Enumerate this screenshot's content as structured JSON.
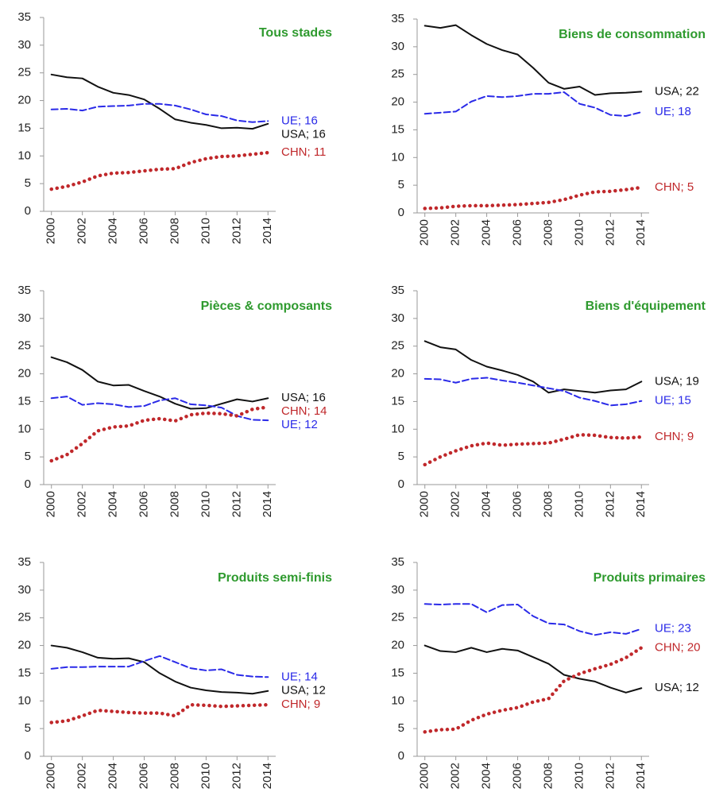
{
  "chart_data": [
    {
      "type": "line",
      "title": "Tous stades",
      "x": [
        2000,
        2001,
        2002,
        2003,
        2004,
        2005,
        2006,
        2007,
        2008,
        2009,
        2010,
        2011,
        2012,
        2013,
        2014
      ],
      "xlim": [
        1999.5,
        2014.5
      ],
      "xticks": [
        2000,
        2002,
        2004,
        2006,
        2008,
        2010,
        2012,
        2014
      ],
      "ylim": [
        0,
        35
      ],
      "yticks": [
        0,
        5,
        10,
        15,
        20,
        25,
        30,
        35
      ],
      "series": [
        {
          "name": "USA",
          "color": "#111111",
          "style": "solid",
          "values": [
            24.7,
            24.2,
            24.0,
            22.5,
            21.4,
            21.0,
            20.2,
            18.5,
            16.6,
            16.0,
            15.6,
            15.0,
            15.1,
            14.9,
            15.8
          ],
          "value_labels": [
            null,
            null,
            null,
            null,
            null,
            null,
            null,
            null,
            null,
            null,
            null,
            null,
            null,
            null,
            "USA; 16"
          ]
        },
        {
          "name": "UE",
          "color": "#2a2ae8",
          "style": "dashed",
          "values": [
            18.4,
            18.5,
            18.2,
            18.9,
            19.0,
            19.1,
            19.4,
            19.4,
            19.1,
            18.4,
            17.5,
            17.2,
            16.4,
            16.1,
            16.3
          ],
          "value_labels": [
            null,
            null,
            null,
            null,
            null,
            null,
            null,
            null,
            null,
            null,
            null,
            null,
            null,
            null,
            "UE; 16"
          ]
        },
        {
          "name": "CHN",
          "color": "#c0282b",
          "style": "dotted",
          "values": [
            4.0,
            4.5,
            5.3,
            6.4,
            6.9,
            7.0,
            7.3,
            7.6,
            7.7,
            8.8,
            9.5,
            9.9,
            10.0,
            10.3,
            10.6
          ],
          "value_labels": [
            null,
            null,
            null,
            null,
            null,
            null,
            null,
            null,
            null,
            null,
            null,
            null,
            null,
            null,
            "CHN; 11"
          ]
        }
      ]
    },
    {
      "type": "line",
      "title": "Biens de consommation",
      "x": [
        2000,
        2001,
        2002,
        2003,
        2004,
        2005,
        2006,
        2007,
        2008,
        2009,
        2010,
        2011,
        2012,
        2013,
        2014
      ],
      "xlim": [
        1999.5,
        2014.5
      ],
      "xticks": [
        2000,
        2002,
        2004,
        2006,
        2008,
        2010,
        2012,
        2014
      ],
      "ylim": [
        0,
        35
      ],
      "yticks": [
        0,
        5,
        10,
        15,
        20,
        25,
        30,
        35
      ],
      "series": [
        {
          "name": "USA",
          "color": "#111111",
          "style": "solid",
          "values": [
            33.8,
            33.4,
            33.9,
            32.1,
            30.5,
            29.4,
            28.6,
            26.2,
            23.5,
            22.4,
            22.8,
            21.3,
            21.6,
            21.7,
            21.9
          ],
          "value_labels": [
            null,
            null,
            null,
            null,
            null,
            null,
            null,
            null,
            null,
            null,
            null,
            null,
            null,
            null,
            "USA; 22"
          ]
        },
        {
          "name": "UE",
          "color": "#2a2ae8",
          "style": "dashed",
          "values": [
            17.9,
            18.1,
            18.3,
            20.1,
            21.1,
            20.9,
            21.1,
            21.5,
            21.5,
            21.8,
            19.7,
            19.0,
            17.7,
            17.5,
            18.2
          ],
          "value_labels": [
            null,
            null,
            null,
            null,
            null,
            null,
            null,
            null,
            null,
            null,
            null,
            null,
            null,
            null,
            "UE; 18"
          ]
        },
        {
          "name": "CHN",
          "color": "#c0282b",
          "style": "dotted",
          "values": [
            0.8,
            0.9,
            1.2,
            1.3,
            1.3,
            1.4,
            1.5,
            1.7,
            1.9,
            2.4,
            3.2,
            3.8,
            3.9,
            4.2,
            4.6
          ],
          "value_labels": [
            null,
            null,
            null,
            null,
            null,
            null,
            null,
            null,
            null,
            null,
            null,
            null,
            null,
            null,
            "CHN; 5"
          ]
        }
      ]
    },
    {
      "type": "line",
      "title": "Pièces & composants",
      "x": [
        2000,
        2001,
        2002,
        2003,
        2004,
        2005,
        2006,
        2007,
        2008,
        2009,
        2010,
        2011,
        2012,
        2013,
        2014
      ],
      "xlim": [
        1999.5,
        2014.5
      ],
      "xticks": [
        2000,
        2002,
        2004,
        2006,
        2008,
        2010,
        2012,
        2014
      ],
      "ylim": [
        0,
        35
      ],
      "yticks": [
        0,
        5,
        10,
        15,
        20,
        25,
        30,
        35
      ],
      "series": [
        {
          "name": "USA",
          "color": "#111111",
          "style": "solid",
          "values": [
            23.0,
            22.1,
            20.7,
            18.6,
            17.9,
            18.0,
            16.9,
            15.9,
            14.6,
            13.7,
            13.8,
            14.6,
            15.4,
            15.0,
            15.6
          ],
          "value_labels": [
            null,
            null,
            null,
            null,
            null,
            null,
            null,
            null,
            null,
            null,
            null,
            null,
            null,
            null,
            "USA; 16"
          ]
        },
        {
          "name": "UE",
          "color": "#2a2ae8",
          "style": "dashed",
          "values": [
            15.6,
            15.9,
            14.4,
            14.7,
            14.5,
            14.0,
            14.2,
            15.2,
            15.6,
            14.5,
            14.3,
            13.9,
            12.4,
            11.7,
            11.6
          ],
          "value_labels": [
            null,
            null,
            null,
            null,
            null,
            null,
            null,
            null,
            null,
            null,
            null,
            null,
            null,
            null,
            "UE; 12"
          ]
        },
        {
          "name": "CHN",
          "color": "#c0282b",
          "style": "dotted",
          "values": [
            4.3,
            5.4,
            7.4,
            9.7,
            10.4,
            10.6,
            11.6,
            11.9,
            11.5,
            12.6,
            12.9,
            12.8,
            12.4,
            13.6,
            14.0
          ],
          "value_labels": [
            null,
            null,
            null,
            null,
            null,
            null,
            null,
            null,
            null,
            null,
            null,
            null,
            null,
            null,
            "CHN; 14"
          ]
        }
      ]
    },
    {
      "type": "line",
      "title": "Biens d'équipement",
      "x": [
        2000,
        2001,
        2002,
        2003,
        2004,
        2005,
        2006,
        2007,
        2008,
        2009,
        2010,
        2011,
        2012,
        2013,
        2014
      ],
      "xlim": [
        1999.5,
        2014.5
      ],
      "xticks": [
        2000,
        2002,
        2004,
        2006,
        2008,
        2010,
        2012,
        2014
      ],
      "ylim": [
        0,
        35
      ],
      "yticks": [
        0,
        5,
        10,
        15,
        20,
        25,
        30,
        35
      ],
      "series": [
        {
          "name": "USA",
          "color": "#111111",
          "style": "solid",
          "values": [
            25.9,
            24.8,
            24.4,
            22.5,
            21.3,
            20.6,
            19.8,
            18.6,
            16.6,
            17.2,
            16.9,
            16.6,
            17.0,
            17.2,
            18.6
          ],
          "value_labels": [
            null,
            null,
            null,
            null,
            null,
            null,
            null,
            null,
            null,
            null,
            null,
            null,
            null,
            null,
            "USA; 19"
          ]
        },
        {
          "name": "UE",
          "color": "#2a2ae8",
          "style": "dashed",
          "values": [
            19.1,
            19.0,
            18.4,
            19.1,
            19.3,
            18.8,
            18.4,
            17.9,
            17.4,
            16.9,
            15.7,
            15.1,
            14.3,
            14.5,
            15.1
          ],
          "value_labels": [
            null,
            null,
            null,
            null,
            null,
            null,
            null,
            null,
            null,
            null,
            null,
            null,
            null,
            null,
            "UE; 15"
          ]
        },
        {
          "name": "CHN",
          "color": "#c0282b",
          "style": "dotted",
          "values": [
            3.6,
            5.0,
            6.1,
            7.0,
            7.5,
            7.1,
            7.3,
            7.4,
            7.5,
            8.2,
            9.0,
            8.9,
            8.5,
            8.4,
            8.6
          ],
          "value_labels": [
            null,
            null,
            null,
            null,
            null,
            null,
            null,
            null,
            null,
            null,
            null,
            null,
            null,
            null,
            "CHN; 9"
          ]
        }
      ]
    },
    {
      "type": "line",
      "title": "Produits semi-finis",
      "x": [
        2000,
        2001,
        2002,
        2003,
        2004,
        2005,
        2006,
        2007,
        2008,
        2009,
        2010,
        2011,
        2012,
        2013,
        2014
      ],
      "xlim": [
        1999.5,
        2014.5
      ],
      "xticks": [
        2000,
        2002,
        2004,
        2006,
        2008,
        2010,
        2012,
        2014
      ],
      "ylim": [
        0,
        35
      ],
      "yticks": [
        0,
        5,
        10,
        15,
        20,
        25,
        30,
        35
      ],
      "series": [
        {
          "name": "USA",
          "color": "#111111",
          "style": "solid",
          "values": [
            20.0,
            19.6,
            18.8,
            17.8,
            17.6,
            17.7,
            17.0,
            15.0,
            13.5,
            12.4,
            11.9,
            11.6,
            11.5,
            11.3,
            11.8
          ],
          "value_labels": [
            null,
            null,
            null,
            null,
            null,
            null,
            null,
            null,
            null,
            null,
            null,
            null,
            null,
            null,
            "USA; 12"
          ]
        },
        {
          "name": "UE",
          "color": "#2a2ae8",
          "style": "dashed",
          "values": [
            15.8,
            16.1,
            16.1,
            16.2,
            16.2,
            16.2,
            17.2,
            18.1,
            17.0,
            15.9,
            15.5,
            15.7,
            14.7,
            14.4,
            14.3
          ],
          "value_labels": [
            null,
            null,
            null,
            null,
            null,
            null,
            null,
            null,
            null,
            null,
            null,
            null,
            null,
            null,
            "UE; 14"
          ]
        },
        {
          "name": "CHN",
          "color": "#c0282b",
          "style": "dotted",
          "values": [
            6.1,
            6.4,
            7.3,
            8.3,
            8.1,
            7.9,
            7.8,
            7.8,
            7.3,
            9.3,
            9.2,
            9.0,
            9.1,
            9.2,
            9.3
          ],
          "value_labels": [
            null,
            null,
            null,
            null,
            null,
            null,
            null,
            null,
            null,
            null,
            null,
            null,
            null,
            null,
            "CHN; 9"
          ]
        }
      ]
    },
    {
      "type": "line",
      "title": "Produits primaires",
      "x": [
        2000,
        2001,
        2002,
        2003,
        2004,
        2005,
        2006,
        2007,
        2008,
        2009,
        2010,
        2011,
        2012,
        2013,
        2014
      ],
      "xlim": [
        1999.5,
        2014.5
      ],
      "xticks": [
        2000,
        2002,
        2004,
        2006,
        2008,
        2010,
        2012,
        2014
      ],
      "ylim": [
        0,
        35
      ],
      "yticks": [
        0,
        5,
        10,
        15,
        20,
        25,
        30,
        35
      ],
      "series": [
        {
          "name": "USA",
          "color": "#111111",
          "style": "solid",
          "values": [
            20.0,
            19.0,
            18.8,
            19.6,
            18.8,
            19.4,
            19.1,
            17.9,
            16.7,
            14.7,
            14.0,
            13.5,
            12.4,
            11.5,
            12.3
          ],
          "value_labels": [
            null,
            null,
            null,
            null,
            null,
            null,
            null,
            null,
            null,
            null,
            null,
            null,
            null,
            null,
            "USA; 12"
          ]
        },
        {
          "name": "UE",
          "color": "#2a2ae8",
          "style": "dashed",
          "values": [
            27.5,
            27.4,
            27.5,
            27.5,
            26.0,
            27.3,
            27.4,
            25.3,
            24.0,
            23.8,
            22.6,
            21.9,
            22.4,
            22.1,
            23.0
          ],
          "value_labels": [
            null,
            null,
            null,
            null,
            null,
            null,
            null,
            null,
            null,
            null,
            null,
            null,
            null,
            null,
            "UE; 23"
          ]
        },
        {
          "name": "CHN",
          "color": "#c0282b",
          "style": "dotted",
          "values": [
            4.4,
            4.8,
            4.9,
            6.5,
            7.6,
            8.3,
            8.8,
            9.8,
            10.4,
            13.6,
            14.9,
            15.8,
            16.6,
            17.8,
            19.6
          ],
          "value_labels": [
            null,
            null,
            null,
            null,
            null,
            null,
            null,
            null,
            null,
            null,
            null,
            null,
            null,
            null,
            "CHN; 20"
          ]
        }
      ]
    }
  ]
}
